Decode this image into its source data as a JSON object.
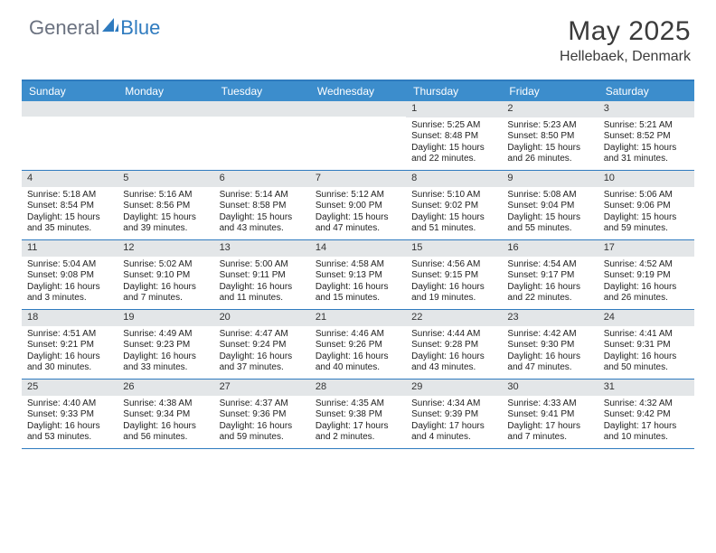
{
  "brand": {
    "part1": "General",
    "part2": "Blue"
  },
  "title": "May 2025",
  "location": "Hellebaek, Denmark",
  "colors": {
    "header_bar": "#3c8dcc",
    "row_border": "#2f7bbf",
    "daynum_bg": "#e3e6e8",
    "text": "#222222"
  },
  "day_names": [
    "Sunday",
    "Monday",
    "Tuesday",
    "Wednesday",
    "Thursday",
    "Friday",
    "Saturday"
  ],
  "weeks": [
    [
      null,
      null,
      null,
      null,
      {
        "n": "1",
        "sunrise": "5:25 AM",
        "sunset": "8:48 PM",
        "daylight": "15 hours and 22 minutes."
      },
      {
        "n": "2",
        "sunrise": "5:23 AM",
        "sunset": "8:50 PM",
        "daylight": "15 hours and 26 minutes."
      },
      {
        "n": "3",
        "sunrise": "5:21 AM",
        "sunset": "8:52 PM",
        "daylight": "15 hours and 31 minutes."
      }
    ],
    [
      {
        "n": "4",
        "sunrise": "5:18 AM",
        "sunset": "8:54 PM",
        "daylight": "15 hours and 35 minutes."
      },
      {
        "n": "5",
        "sunrise": "5:16 AM",
        "sunset": "8:56 PM",
        "daylight": "15 hours and 39 minutes."
      },
      {
        "n": "6",
        "sunrise": "5:14 AM",
        "sunset": "8:58 PM",
        "daylight": "15 hours and 43 minutes."
      },
      {
        "n": "7",
        "sunrise": "5:12 AM",
        "sunset": "9:00 PM",
        "daylight": "15 hours and 47 minutes."
      },
      {
        "n": "8",
        "sunrise": "5:10 AM",
        "sunset": "9:02 PM",
        "daylight": "15 hours and 51 minutes."
      },
      {
        "n": "9",
        "sunrise": "5:08 AM",
        "sunset": "9:04 PM",
        "daylight": "15 hours and 55 minutes."
      },
      {
        "n": "10",
        "sunrise": "5:06 AM",
        "sunset": "9:06 PM",
        "daylight": "15 hours and 59 minutes."
      }
    ],
    [
      {
        "n": "11",
        "sunrise": "5:04 AM",
        "sunset": "9:08 PM",
        "daylight": "16 hours and 3 minutes."
      },
      {
        "n": "12",
        "sunrise": "5:02 AM",
        "sunset": "9:10 PM",
        "daylight": "16 hours and 7 minutes."
      },
      {
        "n": "13",
        "sunrise": "5:00 AM",
        "sunset": "9:11 PM",
        "daylight": "16 hours and 11 minutes."
      },
      {
        "n": "14",
        "sunrise": "4:58 AM",
        "sunset": "9:13 PM",
        "daylight": "16 hours and 15 minutes."
      },
      {
        "n": "15",
        "sunrise": "4:56 AM",
        "sunset": "9:15 PM",
        "daylight": "16 hours and 19 minutes."
      },
      {
        "n": "16",
        "sunrise": "4:54 AM",
        "sunset": "9:17 PM",
        "daylight": "16 hours and 22 minutes."
      },
      {
        "n": "17",
        "sunrise": "4:52 AM",
        "sunset": "9:19 PM",
        "daylight": "16 hours and 26 minutes."
      }
    ],
    [
      {
        "n": "18",
        "sunrise": "4:51 AM",
        "sunset": "9:21 PM",
        "daylight": "16 hours and 30 minutes."
      },
      {
        "n": "19",
        "sunrise": "4:49 AM",
        "sunset": "9:23 PM",
        "daylight": "16 hours and 33 minutes."
      },
      {
        "n": "20",
        "sunrise": "4:47 AM",
        "sunset": "9:24 PM",
        "daylight": "16 hours and 37 minutes."
      },
      {
        "n": "21",
        "sunrise": "4:46 AM",
        "sunset": "9:26 PM",
        "daylight": "16 hours and 40 minutes."
      },
      {
        "n": "22",
        "sunrise": "4:44 AM",
        "sunset": "9:28 PM",
        "daylight": "16 hours and 43 minutes."
      },
      {
        "n": "23",
        "sunrise": "4:42 AM",
        "sunset": "9:30 PM",
        "daylight": "16 hours and 47 minutes."
      },
      {
        "n": "24",
        "sunrise": "4:41 AM",
        "sunset": "9:31 PM",
        "daylight": "16 hours and 50 minutes."
      }
    ],
    [
      {
        "n": "25",
        "sunrise": "4:40 AM",
        "sunset": "9:33 PM",
        "daylight": "16 hours and 53 minutes."
      },
      {
        "n": "26",
        "sunrise": "4:38 AM",
        "sunset": "9:34 PM",
        "daylight": "16 hours and 56 minutes."
      },
      {
        "n": "27",
        "sunrise": "4:37 AM",
        "sunset": "9:36 PM",
        "daylight": "16 hours and 59 minutes."
      },
      {
        "n": "28",
        "sunrise": "4:35 AM",
        "sunset": "9:38 PM",
        "daylight": "17 hours and 2 minutes."
      },
      {
        "n": "29",
        "sunrise": "4:34 AM",
        "sunset": "9:39 PM",
        "daylight": "17 hours and 4 minutes."
      },
      {
        "n": "30",
        "sunrise": "4:33 AM",
        "sunset": "9:41 PM",
        "daylight": "17 hours and 7 minutes."
      },
      {
        "n": "31",
        "sunrise": "4:32 AM",
        "sunset": "9:42 PM",
        "daylight": "17 hours and 10 minutes."
      }
    ]
  ],
  "labels": {
    "sunrise_prefix": "Sunrise: ",
    "sunset_prefix": "Sunset: ",
    "daylight_prefix": "Daylight: "
  }
}
